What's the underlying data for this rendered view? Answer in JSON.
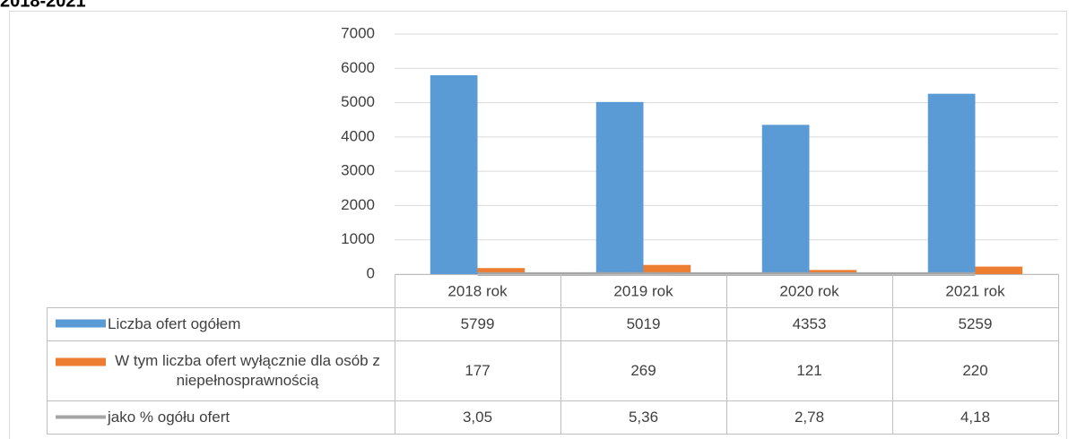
{
  "chart_data": {
    "type": "bar",
    "title": "2018-2021",
    "categories": [
      "2018 rok",
      "2019 rok",
      "2020 rok",
      "2021 rok"
    ],
    "series": [
      {
        "name": "Liczba ofert ogółem",
        "color": "#5b9bd5",
        "type": "bar",
        "values": [
          5799,
          5019,
          4353,
          5259
        ]
      },
      {
        "name": "W tym liczba ofert wyłącznie dla osób z niepełnosprawnością",
        "color": "#ed7d31",
        "type": "bar",
        "values": [
          177,
          269,
          121,
          220
        ]
      },
      {
        "name": "jako % ogółu ofert",
        "color": "#a5a5a5",
        "type": "line",
        "values": [
          3.05,
          5.36,
          2.78,
          4.18
        ],
        "value_labels": [
          "3,05",
          "5,36",
          "2,78",
          "4,18"
        ]
      }
    ],
    "ylim": [
      0,
      7000
    ],
    "yticks": [
      0,
      1000,
      2000,
      3000,
      4000,
      5000,
      6000,
      7000
    ],
    "grid": true,
    "data_table": true
  }
}
